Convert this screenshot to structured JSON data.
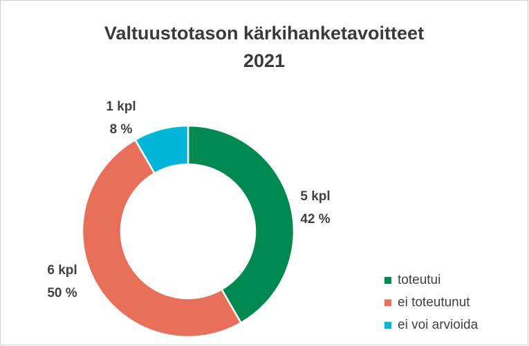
{
  "chart_data": {
    "type": "donut",
    "title": "Valtuustotason kärkihanketavoitteet",
    "subtitle": "2021",
    "categories": [
      "toteutui",
      "ei toteutunut",
      "ei voi arvioida"
    ],
    "values": [
      5,
      6,
      1
    ],
    "value_labels": [
      "5 kpl",
      "6 kpl",
      "1 kpl"
    ],
    "percentage_labels": [
      "42 %",
      "50 %",
      "8 %"
    ],
    "colors": [
      "#00894f",
      "#e8705a",
      "#00b6d8"
    ],
    "legend": "bottom-right"
  }
}
